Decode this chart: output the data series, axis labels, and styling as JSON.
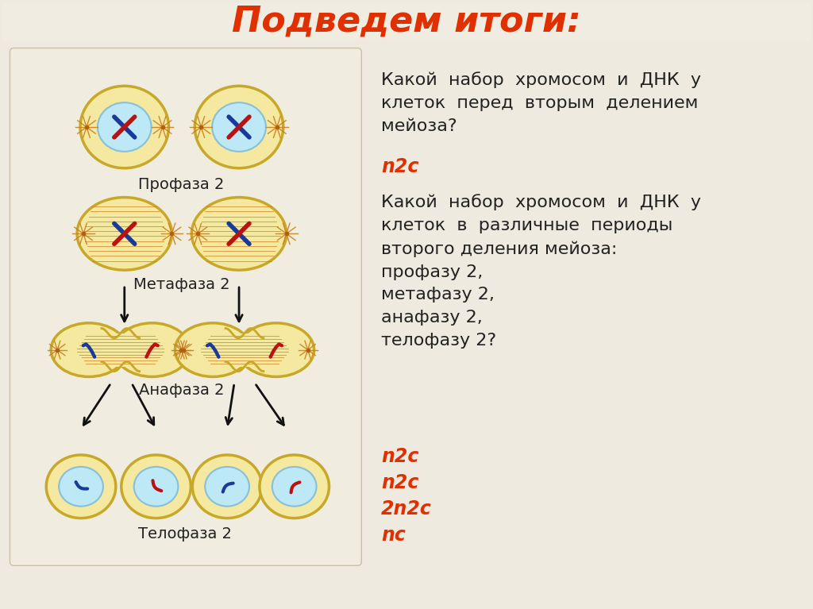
{
  "title": "Подведем итоги:",
  "title_color": "#e03000",
  "title_fontsize": 32,
  "bg_color": "#eeeae0",
  "left_panel_color": "#eeeae0",
  "right_panel_color": "#e8e4d8",
  "cell_body_color": "#f5e8a0",
  "cell_body_edge": "#c8a828",
  "nucleus_color": "#bde8f5",
  "nucleus_edge": "#88c0d8",
  "spindle_color": "#c88020",
  "chrom_blue": "#1a3a9a",
  "chrom_red": "#bb1111",
  "arrow_color": "#111111",
  "label_color": "#222222",
  "label_fontsize": 14,
  "q_color": "#222222",
  "a_color": "#e03000",
  "q_fontsize": 16,
  "a_fontsize": 17,
  "stage_labels": [
    "Профаза 2",
    "Метафаза 2",
    "Анафаза 2",
    "Телофаза 2"
  ],
  "q1_text": "Какой  набор  хромосом  и  ДНК  у\nклеток  перед  вторым  делением\nмейоза?",
  "q1_answer": "n2c",
  "q2_text": "Какой  набор  хромосом  и  ДНК  у\nклеток  в  различные  периоды\nвторого деления мейоза:\nпрофазу 2,\nметафазу 2,\nанафазу 2,\nтелофазу 2?",
  "q2_answers": [
    "n2c",
    "n2c",
    "2n2c",
    "nc"
  ]
}
